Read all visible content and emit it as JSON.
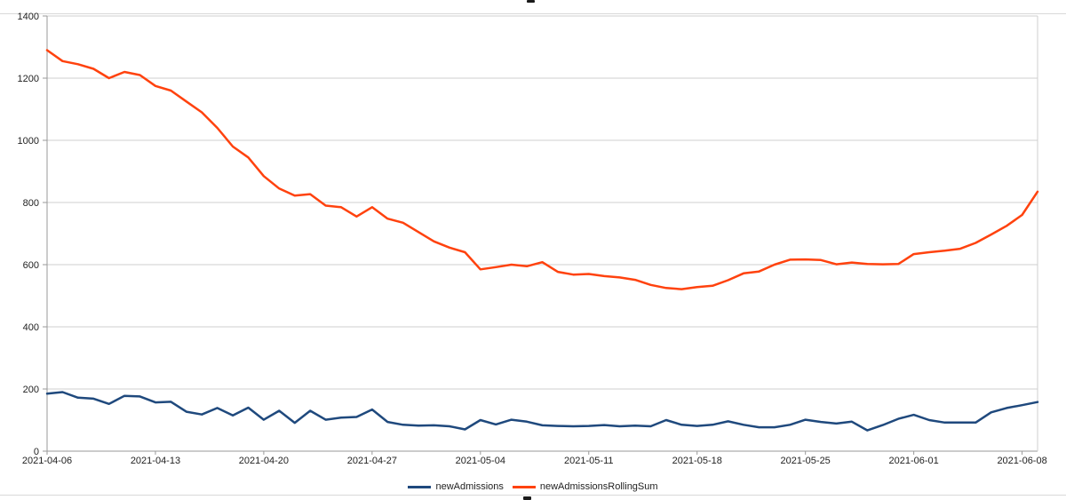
{
  "colors": {
    "grid": "#cfcfcf",
    "axis": "#9a9a9a",
    "label": "#222222",
    "series_blue": "#1F497D",
    "series_orange": "#FF420E"
  },
  "chart_data": {
    "type": "line",
    "title": "",
    "grid": true,
    "legend_position": "bottom",
    "ylim": [
      0,
      1400
    ],
    "ytick_labels": [
      "0",
      "200",
      "400",
      "600",
      "800",
      "1000",
      "1200",
      "1400"
    ],
    "xtick_labels": [
      "2021-04-06",
      "2021-04-13",
      "2021-04-20",
      "2021-04-27",
      "2021-05-04",
      "2021-05-11",
      "2021-05-18",
      "2021-05-25",
      "2021-06-01",
      "2021-06-08"
    ],
    "xtick_step": 7,
    "x_dates": [
      "2021-04-06",
      "2021-04-07",
      "2021-04-08",
      "2021-04-09",
      "2021-04-10",
      "2021-04-11",
      "2021-04-12",
      "2021-04-13",
      "2021-04-14",
      "2021-04-15",
      "2021-04-16",
      "2021-04-17",
      "2021-04-18",
      "2021-04-19",
      "2021-04-20",
      "2021-04-21",
      "2021-04-22",
      "2021-04-23",
      "2021-04-24",
      "2021-04-25",
      "2021-04-26",
      "2021-04-27",
      "2021-04-28",
      "2021-04-29",
      "2021-04-30",
      "2021-05-01",
      "2021-05-02",
      "2021-05-03",
      "2021-05-04",
      "2021-05-05",
      "2021-05-06",
      "2021-05-07",
      "2021-05-08",
      "2021-05-09",
      "2021-05-10",
      "2021-05-11",
      "2021-05-12",
      "2021-05-13",
      "2021-05-14",
      "2021-05-15",
      "2021-05-16",
      "2021-05-17",
      "2021-05-18",
      "2021-05-19",
      "2021-05-20",
      "2021-05-21",
      "2021-05-22",
      "2021-05-23",
      "2021-05-24",
      "2021-05-25",
      "2021-05-26",
      "2021-05-27",
      "2021-05-28",
      "2021-05-29",
      "2021-05-30",
      "2021-05-31",
      "2021-06-01",
      "2021-06-02",
      "2021-06-03",
      "2021-06-04",
      "2021-06-05",
      "2021-06-06",
      "2021-06-07",
      "2021-06-08",
      "2021-06-09"
    ],
    "series": [
      {
        "name": "newAdmissions",
        "color": "#1F497D",
        "values": [
          185,
          190,
          172,
          169,
          152,
          178,
          176,
          157,
          159,
          127,
          118,
          139,
          115,
          140,
          101,
          130,
          91,
          130,
          101,
          108,
          110,
          134,
          94,
          85,
          82,
          83,
          80,
          70,
          100,
          86,
          101,
          95,
          83,
          81,
          80,
          81,
          84,
          80,
          82,
          80,
          100,
          85,
          81,
          85,
          96,
          85,
          77,
          77,
          85,
          101,
          94,
          89,
          95,
          67,
          84,
          104,
          117,
          100,
          92,
          92,
          92,
          125,
          139,
          148,
          158
        ]
      },
      {
        "name": "newAdmissionsRollingSum",
        "color": "#FF420E",
        "values": [
          1290,
          1255,
          1245,
          1230,
          1200,
          1220,
          1210,
          1175,
          1160,
          1125,
          1090,
          1040,
          980,
          945,
          885,
          845,
          822,
          827,
          790,
          785,
          755,
          785,
          748,
          735,
          705,
          675,
          655,
          640,
          585,
          592,
          600,
          595,
          608,
          577,
          568,
          570,
          563,
          559,
          551,
          535,
          525,
          521,
          528,
          532,
          550,
          572,
          578,
          600,
          616,
          617,
          615,
          601,
          607,
          602,
          601,
          602,
          634,
          640,
          645,
          651,
          670,
          697,
          725,
          760,
          835
        ]
      }
    ]
  },
  "legend": {
    "items": [
      {
        "label": "newAdmissions"
      },
      {
        "label": "newAdmissionsRollingSum"
      }
    ]
  }
}
